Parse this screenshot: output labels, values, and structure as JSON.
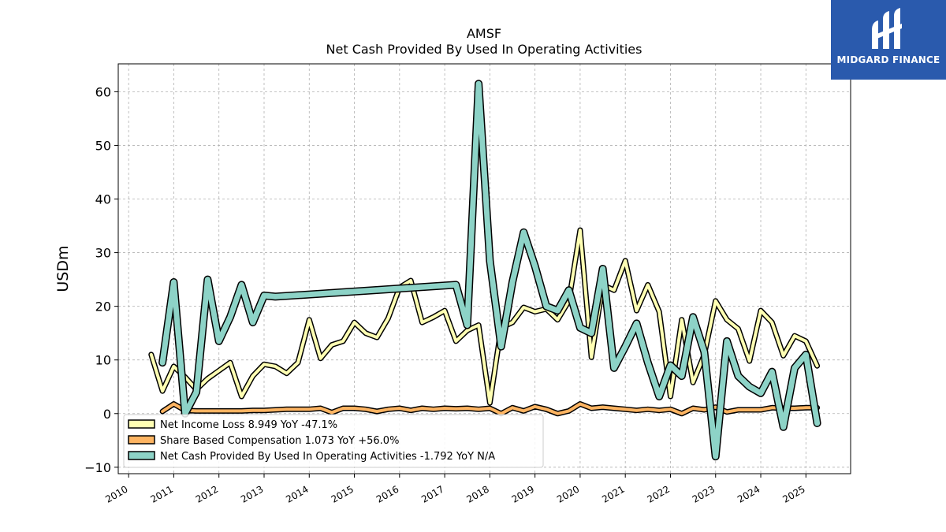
{
  "brand": {
    "name": "MIDGARD FINANCE",
    "bg_color": "#2a5aad"
  },
  "chart_data": {
    "type": "line",
    "title": "AMSF",
    "subtitle": "Net Cash Provided By Used In Operating Activities",
    "ylabel": "USDm",
    "xlabel": "",
    "ylim": [
      -11.2,
      65.2
    ],
    "xlim": [
      2009.77,
      2025.99
    ],
    "yticks": [
      -10,
      0,
      10,
      20,
      30,
      40,
      50,
      60
    ],
    "yticklabels": [
      "−10",
      "0",
      "10",
      "20",
      "30",
      "40",
      "50",
      "60"
    ],
    "xticks": [
      2010,
      2011,
      2012,
      2013,
      2014,
      2015,
      2016,
      2017,
      2018,
      2019,
      2020,
      2021,
      2022,
      2023,
      2024,
      2025
    ],
    "xticklabels": [
      "2010",
      "2011",
      "2012",
      "2013",
      "2014",
      "2015",
      "2016",
      "2017",
      "2018",
      "2019",
      "2020",
      "2021",
      "2022",
      "2023",
      "2024",
      "2025"
    ],
    "grid": true,
    "legend_position": "lower-left",
    "series": [
      {
        "name": "Net Income Loss",
        "legend_label": "Net Income Loss  8.949 YoY -47.1%",
        "color": "#ffffb3",
        "x": [
          2010.5,
          2010.75,
          2011.0,
          2011.25,
          2011.5,
          2011.75,
          2012.0,
          2012.25,
          2012.5,
          2012.75,
          2013.0,
          2013.25,
          2013.5,
          2013.75,
          2014.0,
          2014.25,
          2014.5,
          2014.75,
          2015.0,
          2015.25,
          2015.5,
          2015.75,
          2016.0,
          2016.25,
          2016.5,
          2016.75,
          2017.0,
          2017.25,
          2017.5,
          2017.75,
          2018.0,
          2018.25,
          2018.5,
          2018.75,
          2019.0,
          2019.25,
          2019.5,
          2019.75,
          2020.0,
          2020.25,
          2020.5,
          2020.75,
          2021.0,
          2021.25,
          2021.5,
          2021.75,
          2022.0,
          2022.25,
          2022.5,
          2022.75,
          2023.0,
          2023.25,
          2023.5,
          2023.75,
          2024.0,
          2024.25,
          2024.5,
          2024.75,
          2025.0,
          2025.25
        ],
        "values": [
          11.0,
          4.2,
          8.8,
          6.8,
          4.5,
          6.5,
          8.0,
          9.5,
          3.2,
          7.0,
          9.2,
          8.8,
          7.5,
          9.5,
          17.5,
          10.3,
          12.8,
          13.5,
          17.0,
          15.0,
          14.2,
          17.8,
          23.5,
          24.8,
          17.0,
          18.0,
          19.2,
          13.5,
          15.5,
          16.5,
          2.0,
          16.0,
          17.0,
          19.8,
          19.0,
          19.5,
          17.5,
          21.0,
          34.2,
          10.5,
          24.0,
          23.0,
          28.5,
          19.2,
          24.0,
          19.0,
          3.2,
          17.5,
          5.8,
          11.0,
          21.0,
          17.5,
          15.8,
          9.8,
          19.2,
          17.0,
          10.8,
          14.5,
          13.5,
          8.9
        ]
      },
      {
        "name": "Share Based Compensation",
        "legend_label": "Share Based Compensation  1.073 YoY +56.0%",
        "color": "#fdb462",
        "x": [
          2010.75,
          2011.0,
          2011.25,
          2011.5,
          2011.75,
          2012.0,
          2012.25,
          2012.5,
          2012.75,
          2013.0,
          2013.25,
          2013.5,
          2013.75,
          2014.0,
          2014.25,
          2014.5,
          2014.75,
          2015.0,
          2015.25,
          2015.5,
          2015.75,
          2016.0,
          2016.25,
          2016.5,
          2016.75,
          2017.0,
          2017.25,
          2017.5,
          2017.75,
          2018.0,
          2018.25,
          2018.5,
          2018.75,
          2019.0,
          2019.25,
          2019.5,
          2019.75,
          2020.0,
          2020.25,
          2020.5,
          2020.75,
          2021.0,
          2021.25,
          2021.5,
          2021.75,
          2022.0,
          2022.25,
          2022.5,
          2022.75,
          2023.0,
          2023.25,
          2023.5,
          2023.75,
          2024.0,
          2024.25,
          2024.5,
          2024.75,
          2025.0,
          2025.25
        ],
        "values": [
          0.4,
          1.8,
          0.6,
          0.5,
          0.5,
          0.5,
          0.5,
          0.5,
          0.6,
          0.6,
          0.7,
          0.8,
          0.8,
          0.8,
          1.0,
          0.2,
          1.0,
          1.0,
          0.8,
          0.4,
          0.8,
          1.0,
          0.6,
          1.0,
          0.8,
          1.0,
          0.9,
          1.0,
          0.8,
          1.0,
          0.0,
          1.1,
          0.5,
          1.3,
          0.8,
          0.0,
          0.5,
          1.8,
          1.0,
          1.2,
          1.0,
          0.8,
          0.6,
          0.8,
          0.6,
          0.8,
          0.0,
          1.0,
          0.7,
          1.2,
          0.3,
          0.7,
          0.7,
          0.7,
          1.1,
          1.0,
          1.0,
          1.1,
          1.1
        ]
      },
      {
        "name": "Net Cash Provided By Used In Operating Activities",
        "legend_label": "Net Cash Provided By Used In Operating Activities  -1.792 YoY N/A",
        "color": "#8dd3c7",
        "x": [
          2010.75,
          2011.0,
          2011.25,
          2011.5,
          2011.75,
          2012.0,
          2012.25,
          2012.5,
          2012.75,
          2013.0,
          2013.25,
          2017.25,
          2017.5,
          2017.75,
          2018.0,
          2018.25,
          2018.5,
          2018.75,
          2019.0,
          2019.25,
          2019.5,
          2019.75,
          2020.0,
          2020.25,
          2020.5,
          2020.75,
          2021.0,
          2021.25,
          2021.5,
          2021.75,
          2022.0,
          2022.25,
          2022.5,
          2022.75,
          2023.0,
          2023.25,
          2023.5,
          2023.75,
          2024.0,
          2024.25,
          2024.5,
          2024.75,
          2025.0,
          2025.25
        ],
        "values": [
          9.5,
          24.5,
          0.0,
          4.0,
          25.0,
          13.5,
          18.0,
          24.0,
          17.0,
          22.0,
          21.8,
          24.0,
          16.5,
          61.5,
          28.5,
          12.5,
          24.5,
          33.8,
          27.5,
          20.0,
          19.2,
          23.0,
          16.0,
          15.0,
          27.0,
          8.5,
          12.5,
          16.8,
          9.5,
          3.2,
          9.0,
          7.0,
          18.0,
          11.5,
          -8.0,
          13.5,
          7.0,
          5.0,
          3.8,
          7.8,
          -2.5,
          8.5,
          11.0,
          -1.8
        ]
      }
    ]
  }
}
